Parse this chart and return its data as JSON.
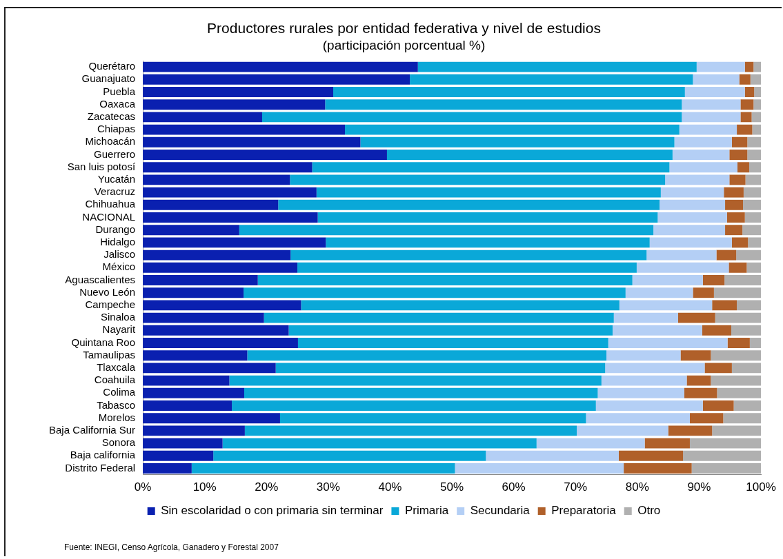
{
  "chart_data": {
    "type": "bar",
    "orientation": "horizontal",
    "stacked": true,
    "title": "Productores rurales por entidad federativa y nivel de estudios",
    "subtitle": "(participación porcentual %)",
    "categories": [
      "Querétaro",
      "Guanajuato",
      "Puebla",
      "Oaxaca",
      "Zacatecas",
      "Chiapas",
      "Michoacán",
      "Guerrero",
      "San luis potosí",
      "Yucatán",
      "Veracruz",
      "Chihuahua",
      "NACIONAL",
      "Durango",
      "Hidalgo",
      "Jalisco",
      "México",
      "Aguascalientes",
      "Nuevo León",
      "Campeche",
      "Sinaloa",
      "Nayarit",
      "Quintana Roo",
      "Tamaulipas",
      "Tlaxcala",
      "Coahuila",
      "Colima",
      "Tabasco",
      "Morelos",
      "Baja California Sur",
      "Sonora",
      "Baja california",
      "Distrito Federal"
    ],
    "series": [
      {
        "name": "Sin escolaridad o con primaria sin terminar",
        "color": "#0a20b0",
        "values": [
          44.5,
          43.2,
          30.8,
          29.5,
          19.3,
          32.7,
          35.2,
          39.5,
          27.4,
          23.8,
          28.1,
          21.9,
          28.3,
          15.6,
          29.6,
          23.9,
          25.0,
          18.6,
          16.3,
          25.6,
          19.6,
          23.6,
          25.1,
          16.9,
          21.5,
          14.0,
          16.4,
          14.4,
          22.2,
          16.5,
          12.9,
          11.4,
          7.9
        ]
      },
      {
        "name": "Primaria",
        "color": "#0aa8d8",
        "values": [
          45.1,
          45.8,
          56.9,
          57.7,
          67.9,
          54.1,
          50.8,
          46.2,
          57.8,
          60.7,
          55.7,
          61.7,
          55.0,
          67.0,
          52.4,
          57.6,
          54.9,
          60.6,
          61.8,
          51.5,
          56.6,
          52.4,
          50.2,
          58.1,
          53.3,
          60.2,
          57.2,
          58.9,
          49.5,
          53.7,
          50.8,
          44.1,
          42.6
        ]
      },
      {
        "name": "Secundaria",
        "color": "#b4cff5",
        "values": [
          7.8,
          7.5,
          9.7,
          9.5,
          9.5,
          9.3,
          9.3,
          9.2,
          11.0,
          10.4,
          10.2,
          10.6,
          11.2,
          11.6,
          13.3,
          11.3,
          14.9,
          11.4,
          10.9,
          15.0,
          10.4,
          14.5,
          19.3,
          12.0,
          16.1,
          13.8,
          14.0,
          17.3,
          16.8,
          14.8,
          17.5,
          21.5,
          27.3
        ]
      },
      {
        "name": "Preparatoria",
        "color": "#b0602a",
        "values": [
          1.4,
          1.8,
          1.5,
          2.1,
          1.8,
          2.5,
          2.5,
          2.9,
          1.9,
          2.6,
          3.2,
          2.9,
          2.9,
          2.8,
          2.6,
          3.2,
          2.9,
          3.5,
          3.4,
          4.0,
          6.0,
          4.7,
          3.6,
          4.9,
          4.4,
          3.9,
          5.3,
          5.0,
          5.4,
          7.1,
          7.3,
          10.4,
          11.0
        ]
      },
      {
        "name": "Otro",
        "color": "#b0b0b0",
        "values": [
          1.2,
          1.7,
          1.1,
          1.2,
          1.5,
          1.4,
          2.2,
          2.2,
          1.9,
          2.5,
          2.8,
          2.9,
          2.6,
          3.0,
          2.1,
          4.0,
          2.3,
          5.9,
          7.6,
          3.9,
          7.4,
          4.8,
          1.8,
          8.1,
          4.7,
          8.1,
          7.1,
          4.4,
          6.1,
          7.9,
          11.5,
          12.6,
          11.2
        ]
      }
    ],
    "xlim": [
      0,
      100
    ],
    "xticks": [
      {
        "value": 0,
        "label": "0%"
      },
      {
        "value": 10,
        "label": "10%"
      },
      {
        "value": 20,
        "label": "20%"
      },
      {
        "value": 30,
        "label": "30%"
      },
      {
        "value": 40,
        "label": "40%"
      },
      {
        "value": 50,
        "label": "50%"
      },
      {
        "value": 60,
        "label": "60%"
      },
      {
        "value": 70,
        "label": "70%"
      },
      {
        "value": 80,
        "label": "80%"
      },
      {
        "value": 90,
        "label": "90%"
      },
      {
        "value": 100,
        "label": "100%"
      }
    ],
    "grid": false,
    "legend": "bottom",
    "annotations": [
      "Fuente:  INEGI, Censo Agrícola, Ganadero y Forestal 2007"
    ]
  }
}
